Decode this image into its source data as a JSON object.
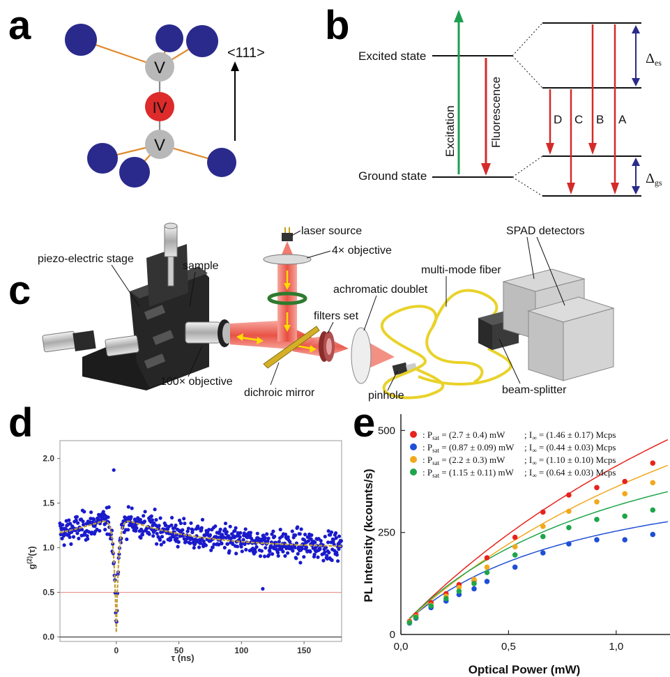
{
  "panel_a": {
    "letter": "a",
    "atom_v_upper": "V",
    "atom_iv": "IV",
    "atom_v_lower": "V",
    "direction_label": "<111>",
    "colors": {
      "carbon": "#2a2a8c",
      "vacancy": "#b8b8b8",
      "group_iv": "#dd2a2a",
      "bond": "#e08a2e"
    }
  },
  "panel_b": {
    "letter": "b",
    "excited_state": "Excited state",
    "ground_state": "Ground state",
    "excitation": "Excitation",
    "fluorescence": "Fluorescence",
    "transitions": [
      "D",
      "C",
      "B",
      "A"
    ],
    "delta_es": "Δ",
    "delta_es_sub": "es",
    "delta_gs": "Δ",
    "delta_gs_sub": "gs",
    "colors": {
      "excitation": "#1e9e52",
      "fluorescence": "#d42a2a",
      "splitting": "#2a2a8c"
    }
  },
  "panel_c": {
    "letter": "c",
    "labels": {
      "laser_source": "laser source",
      "objective_4x": "4× objective",
      "sample": "sample",
      "piezo_stage": "piezo-electric stage",
      "achromatic_doublet": "achromatic doublet",
      "multimode_fiber": "multi-mode fiber",
      "spad_detectors": "SPAD detectors",
      "filters_set": "filters set",
      "objective_100x": "100× objective",
      "dichroic_mirror": "dichroic mirror",
      "pinhole": "pinhole",
      "beam_splitter": "beam-splitter"
    }
  },
  "panel_d": {
    "letter": "d",
    "chart_data": {
      "type": "scatter",
      "xlabel": "τ (ns)",
      "ylabel": "g(2)(τ)",
      "ylabel_base": "g",
      "ylabel_sup": "(2)",
      "ylabel_tail": "(τ)",
      "xlim": [
        -45,
        180
      ],
      "ylim": [
        -0.05,
        2.2
      ],
      "xticks": [
        0,
        50,
        100,
        150
      ],
      "yticks": [
        "0.0",
        "0.5",
        "1.0",
        "1.5",
        "2.0"
      ],
      "reference_lines": [
        0.5,
        0.0
      ],
      "point_color": "#1a1acc",
      "fit_color": "#c2a035",
      "fit": {
        "baseline": 1.0,
        "bunching_amp": 0.36,
        "bunching_tau_ns": 60,
        "antibunch_tau_ns": 2.0,
        "g0": 0.05
      }
    }
  },
  "panel_e": {
    "letter": "e",
    "chart_data": {
      "type": "scatter",
      "xlabel": "Optical Power (mW)",
      "ylabel": "PL Intensity (kcounts/s)",
      "xlim": [
        0.0,
        1.25
      ],
      "ylim": [
        0,
        540
      ],
      "xticks": [
        "0,0",
        "0,5",
        "1,0"
      ],
      "xtick_values": [
        0.0,
        0.5,
        1.0
      ],
      "yticks": [
        0,
        250,
        500
      ],
      "x": [
        0.04,
        0.07,
        0.14,
        0.21,
        0.27,
        0.34,
        0.4,
        0.53,
        0.66,
        0.78,
        0.91,
        1.04,
        1.17
      ],
      "series": [
        {
          "color": "#e8221c",
          "Psat_mW": 2.7,
          "Iinf_Mcps": 1.46,
          "legend_psat": "= (2.7 ± 0.4) mW",
          "legend_iinf": "= (1.46 ± 0.17) Mcps",
          "values": [
            32,
            48,
            78,
            100,
            122,
            132,
            188,
            238,
            300,
            342,
            360,
            375,
            420
          ]
        },
        {
          "color": "#1f4fd6",
          "Psat_mW": 0.87,
          "Iinf_Mcps": 0.44,
          "legend_psat": "= (0.87 ± 0.09) mW",
          "legend_iinf": "= (0.44 ± 0.03) Mcps",
          "values": [
            28,
            40,
            66,
            82,
            98,
            112,
            130,
            165,
            200,
            222,
            232,
            232,
            245
          ]
        },
        {
          "color": "#f2a81d",
          "Psat_mW": 2.2,
          "Iinf_Mcps": 1.1,
          "legend_psat": "= (2.2 ± 0.3) mW",
          "legend_iinf": "= (1.10 ± 0.10) Mcps",
          "values": [
            30,
            44,
            72,
            94,
            115,
            135,
            165,
            215,
            265,
            302,
            325,
            345,
            372
          ]
        },
        {
          "color": "#1ea54a",
          "Psat_mW": 1.15,
          "Iinf_Mcps": 0.64,
          "legend_psat": "= (1.15 ± 0.11) mW",
          "legend_iinf": "= (0.64 ± 0.03) Mcps",
          "values": [
            29,
            42,
            70,
            88,
            106,
            125,
            152,
            195,
            240,
            262,
            282,
            290,
            305
          ]
        }
      ],
      "legend_psat_label": "P",
      "legend_psat_sub": "sat",
      "legend_iinf_label": "; I",
      "legend_iinf_sub": "∞"
    }
  }
}
